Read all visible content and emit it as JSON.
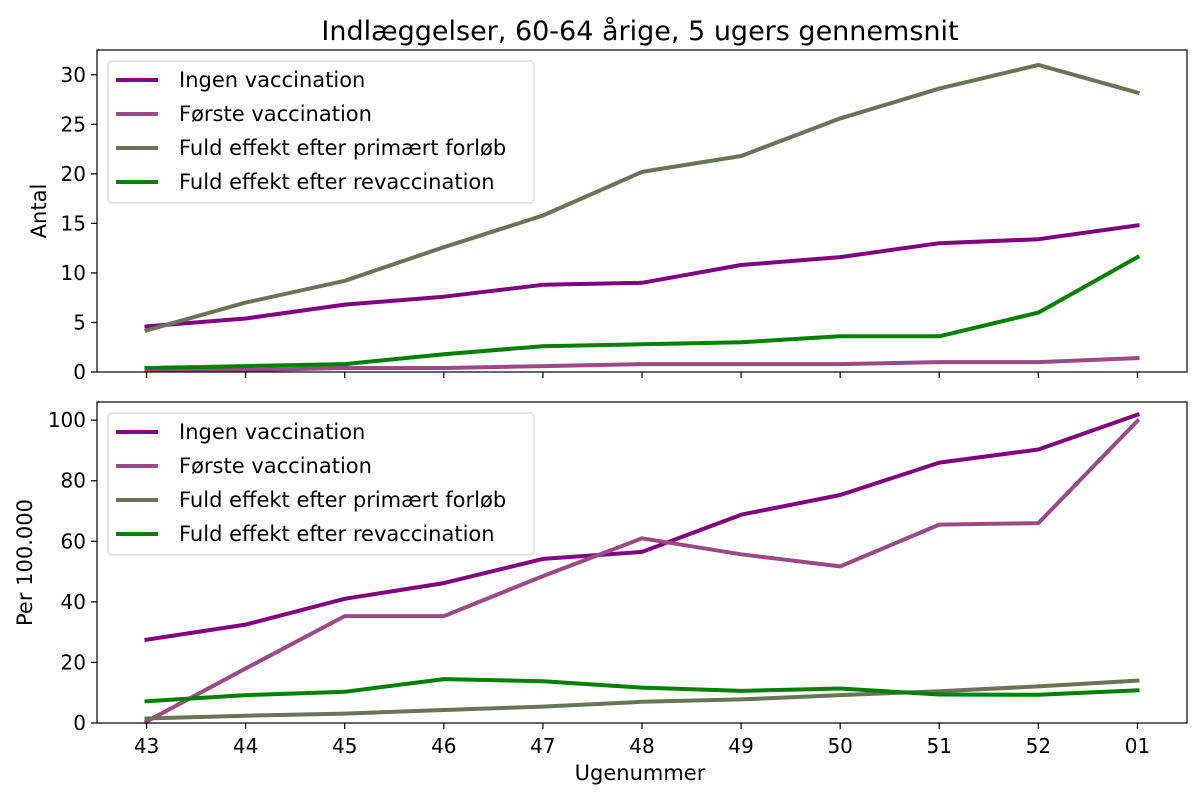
{
  "chart_data": {
    "title": "Indlæggelser, 60-64 årige, 5 ugers gennemsnit",
    "xlabel": "Ugenummer",
    "categories": [
      "43",
      "44",
      "45",
      "46",
      "47",
      "48",
      "49",
      "50",
      "51",
      "52",
      "01"
    ],
    "legend_entries": [
      "Ingen vaccination",
      "Første vaccination",
      "Fuld effekt efter primært forløb",
      "Fuld effekt efter revaccination"
    ],
    "legend_position": "upper-left",
    "series_colors": [
      "#800080",
      "#9c4a86",
      "#6b7356",
      "#008000"
    ],
    "charts": [
      {
        "type": "line",
        "ylabel": "Antal",
        "ylim": [
          0,
          32.5
        ],
        "yticks": [
          0,
          5,
          10,
          15,
          20,
          25,
          30
        ],
        "show_x_tick_labels": false,
        "series": [
          {
            "name": "Ingen vaccination",
            "values": [
              4.6,
              5.4,
              6.8,
              7.6,
              8.8,
              9.0,
              10.8,
              11.6,
              13.0,
              13.4,
              14.8
            ]
          },
          {
            "name": "Første vaccination",
            "values": [
              0.2,
              0.2,
              0.4,
              0.4,
              0.6,
              0.8,
              0.8,
              0.8,
              1.0,
              1.0,
              1.4
            ]
          },
          {
            "name": "Fuld effekt efter primært forløb",
            "values": [
              4.2,
              7.0,
              9.2,
              12.6,
              15.8,
              20.2,
              21.8,
              25.6,
              28.6,
              31.0,
              28.2
            ]
          },
          {
            "name": "Fuld effekt efter revaccination",
            "values": [
              0.4,
              0.6,
              0.8,
              1.8,
              2.6,
              2.8,
              3.0,
              3.6,
              3.6,
              6.0,
              11.6
            ]
          }
        ]
      },
      {
        "type": "line",
        "ylabel": "Per 100.000",
        "ylim": [
          0,
          106
        ],
        "yticks": [
          0,
          20,
          40,
          60,
          80,
          100
        ],
        "show_x_tick_labels": true,
        "series": [
          {
            "name": "Ingen vaccination",
            "values": [
              27.5,
              32.5,
              41.0,
              46.2,
              54.2,
              56.5,
              68.8,
              75.3,
              86.0,
              90.3,
              101.8
            ]
          },
          {
            "name": "Første vaccination",
            "values": [
              0.5,
              18.0,
              35.3,
              35.3,
              48.5,
              61.0,
              55.7,
              51.7,
              65.5,
              66.0,
              99.8
            ]
          },
          {
            "name": "Fuld effekt efter primært forløb",
            "values": [
              1.5,
              2.4,
              3.1,
              4.3,
              5.4,
              7.0,
              7.8,
              9.2,
              10.5,
              12.1,
              14.0
            ]
          },
          {
            "name": "Fuld effekt efter revaccination",
            "values": [
              7.2,
              9.2,
              10.3,
              14.5,
              13.8,
              11.7,
              10.6,
              11.4,
              9.4,
              9.3,
              10.8
            ]
          }
        ]
      }
    ]
  }
}
